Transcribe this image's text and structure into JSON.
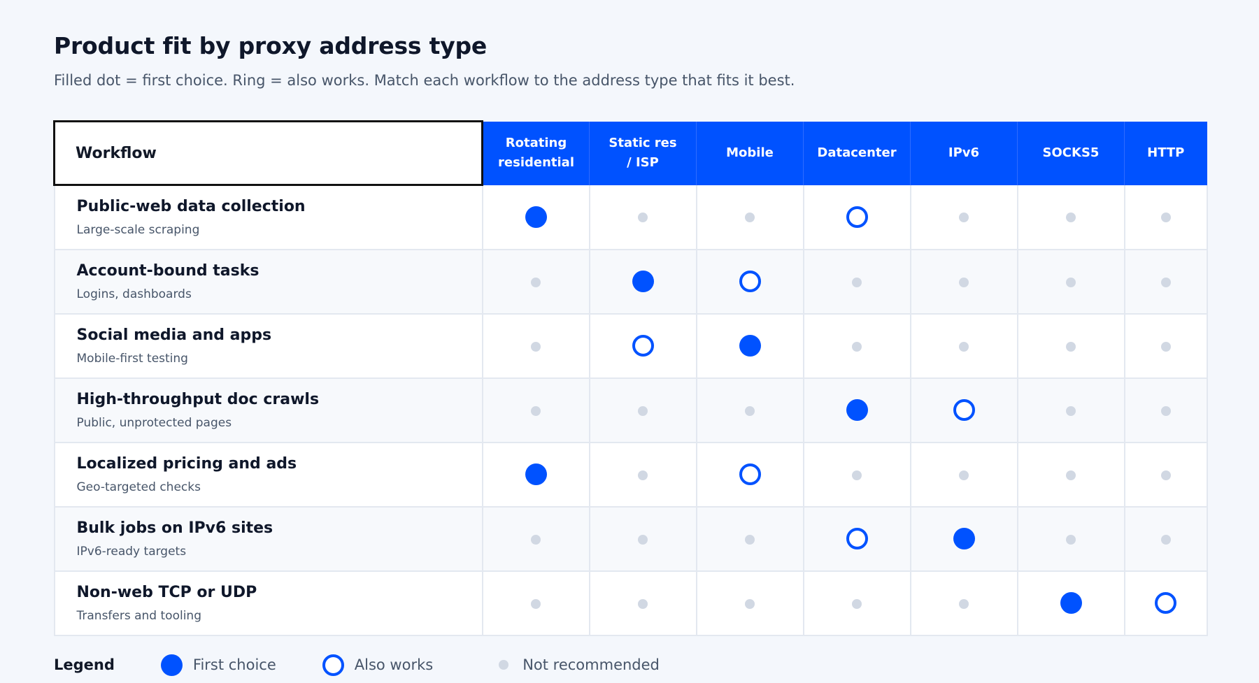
{
  "title": "Product fit by proxy address type",
  "subtitle": "Filled dot = first choice. Ring = also works. Match each workflow to the address type that fits it best.",
  "table": {
    "workflow_header": "Workflow",
    "columns": [
      {
        "line1": "Rotating",
        "line2": "residential"
      },
      {
        "line1": "Static res",
        "line2": "/ ISP"
      },
      {
        "line1": "Mobile",
        "line2": ""
      },
      {
        "line1": "Datacenter",
        "line2": ""
      },
      {
        "line1": "IPv6",
        "line2": ""
      },
      {
        "line1": "SOCKS5",
        "line2": ""
      },
      {
        "line1": "HTTP",
        "line2": ""
      }
    ],
    "rows": [
      {
        "title": "Public-web data collection",
        "desc": "Large-scale scraping",
        "marks": [
          "first",
          "not",
          "not",
          "also",
          "not",
          "not",
          "not"
        ]
      },
      {
        "title": "Account-bound tasks",
        "desc": "Logins, dashboards",
        "marks": [
          "not",
          "first",
          "also",
          "not",
          "not",
          "not",
          "not"
        ]
      },
      {
        "title": "Social media and apps",
        "desc": "Mobile-first testing",
        "marks": [
          "not",
          "also",
          "first",
          "not",
          "not",
          "not",
          "not"
        ]
      },
      {
        "title": "High-throughput doc crawls",
        "desc": "Public, unprotected pages",
        "marks": [
          "not",
          "not",
          "not",
          "first",
          "also",
          "not",
          "not"
        ]
      },
      {
        "title": "Localized pricing and ads",
        "desc": "Geo-targeted checks",
        "marks": [
          "first",
          "not",
          "also",
          "not",
          "not",
          "not",
          "not"
        ]
      },
      {
        "title": "Bulk jobs on IPv6 sites",
        "desc": "IPv6-ready targets",
        "marks": [
          "not",
          "not",
          "not",
          "also",
          "first",
          "not",
          "not"
        ]
      },
      {
        "title": "Non-web TCP or UDP",
        "desc": "Transfers and tooling",
        "marks": [
          "not",
          "not",
          "not",
          "not",
          "not",
          "first",
          "also"
        ]
      }
    ]
  },
  "legend": {
    "title": "Legend",
    "first": "First choice",
    "also": "Also works",
    "not": "Not recommended"
  },
  "colors": {
    "accent": "#0052ff",
    "not_recommended": "#d1d8e3",
    "background": "#f4f7fc"
  }
}
